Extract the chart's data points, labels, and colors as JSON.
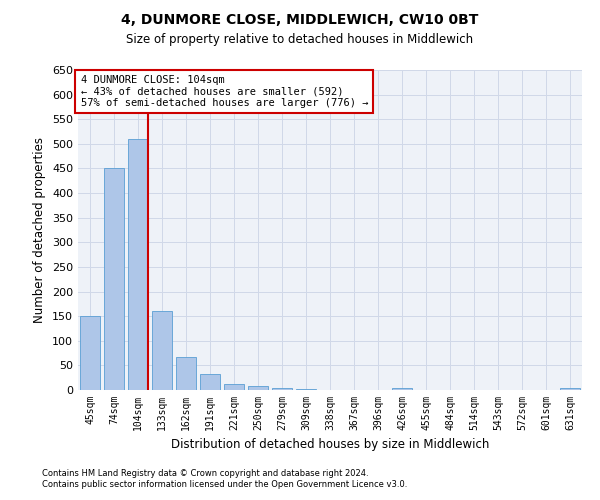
{
  "title1": "4, DUNMORE CLOSE, MIDDLEWICH, CW10 0BT",
  "title2": "Size of property relative to detached houses in Middlewich",
  "xlabel": "Distribution of detached houses by size in Middlewich",
  "ylabel": "Number of detached properties",
  "categories": [
    "45sqm",
    "74sqm",
    "104sqm",
    "133sqm",
    "162sqm",
    "191sqm",
    "221sqm",
    "250sqm",
    "279sqm",
    "309sqm",
    "338sqm",
    "367sqm",
    "396sqm",
    "426sqm",
    "455sqm",
    "484sqm",
    "514sqm",
    "543sqm",
    "572sqm",
    "601sqm",
    "631sqm"
  ],
  "values": [
    150,
    450,
    510,
    160,
    68,
    33,
    13,
    8,
    5,
    2,
    0,
    0,
    0,
    5,
    0,
    0,
    0,
    0,
    0,
    0,
    5
  ],
  "highlight_index": 2,
  "bar_color": "#aec6e8",
  "bar_edge_color": "#5a9fd4",
  "highlight_line_color": "#cc0000",
  "annotation_line1": "4 DUNMORE CLOSE: 104sqm",
  "annotation_line2": "← 43% of detached houses are smaller (592)",
  "annotation_line3": "57% of semi-detached houses are larger (776) →",
  "annotation_box_color": "#ffffff",
  "annotation_box_edge": "#cc0000",
  "grid_color": "#d0d8e8",
  "bg_color": "#eef2f8",
  "ylim": [
    0,
    650
  ],
  "yticks": [
    0,
    50,
    100,
    150,
    200,
    250,
    300,
    350,
    400,
    450,
    500,
    550,
    600,
    650
  ],
  "footer1": "Contains HM Land Registry data © Crown copyright and database right 2024.",
  "footer2": "Contains public sector information licensed under the Open Government Licence v3.0."
}
